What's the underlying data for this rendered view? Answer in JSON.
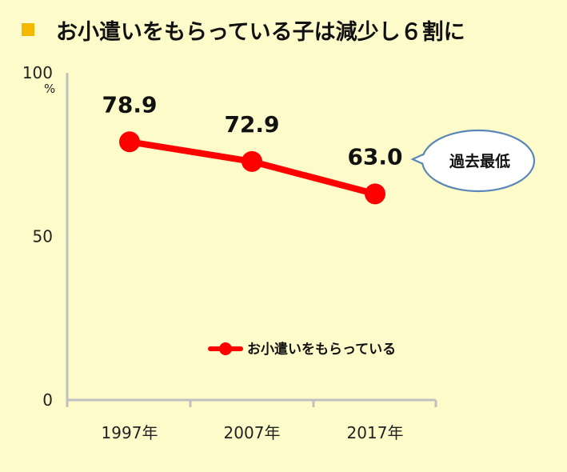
{
  "chart_data": {
    "type": "line",
    "title": "お小遣いをもらっている子は減少し６割に",
    "title_marker_color": "#f5b800",
    "categories": [
      "1997年",
      "2007年",
      "2017年"
    ],
    "series": [
      {
        "name": "お小遣いをもらっている",
        "values": [
          78.9,
          72.9,
          63.0
        ],
        "labels": [
          "78.9",
          "72.9",
          "63.0"
        ],
        "color": "#ff0000"
      }
    ],
    "ylim": [
      0,
      100
    ],
    "yticks": [
      "0",
      "50",
      "100"
    ],
    "ytick_values": [
      0,
      50,
      100
    ],
    "yunit": "%",
    "grid": false,
    "legend_position": "bottom-center",
    "annotation": "過去最低",
    "colors": {
      "background": "#fdfbc9",
      "axis": "#c0c0c0",
      "callout_border": "#5b86b8"
    }
  }
}
